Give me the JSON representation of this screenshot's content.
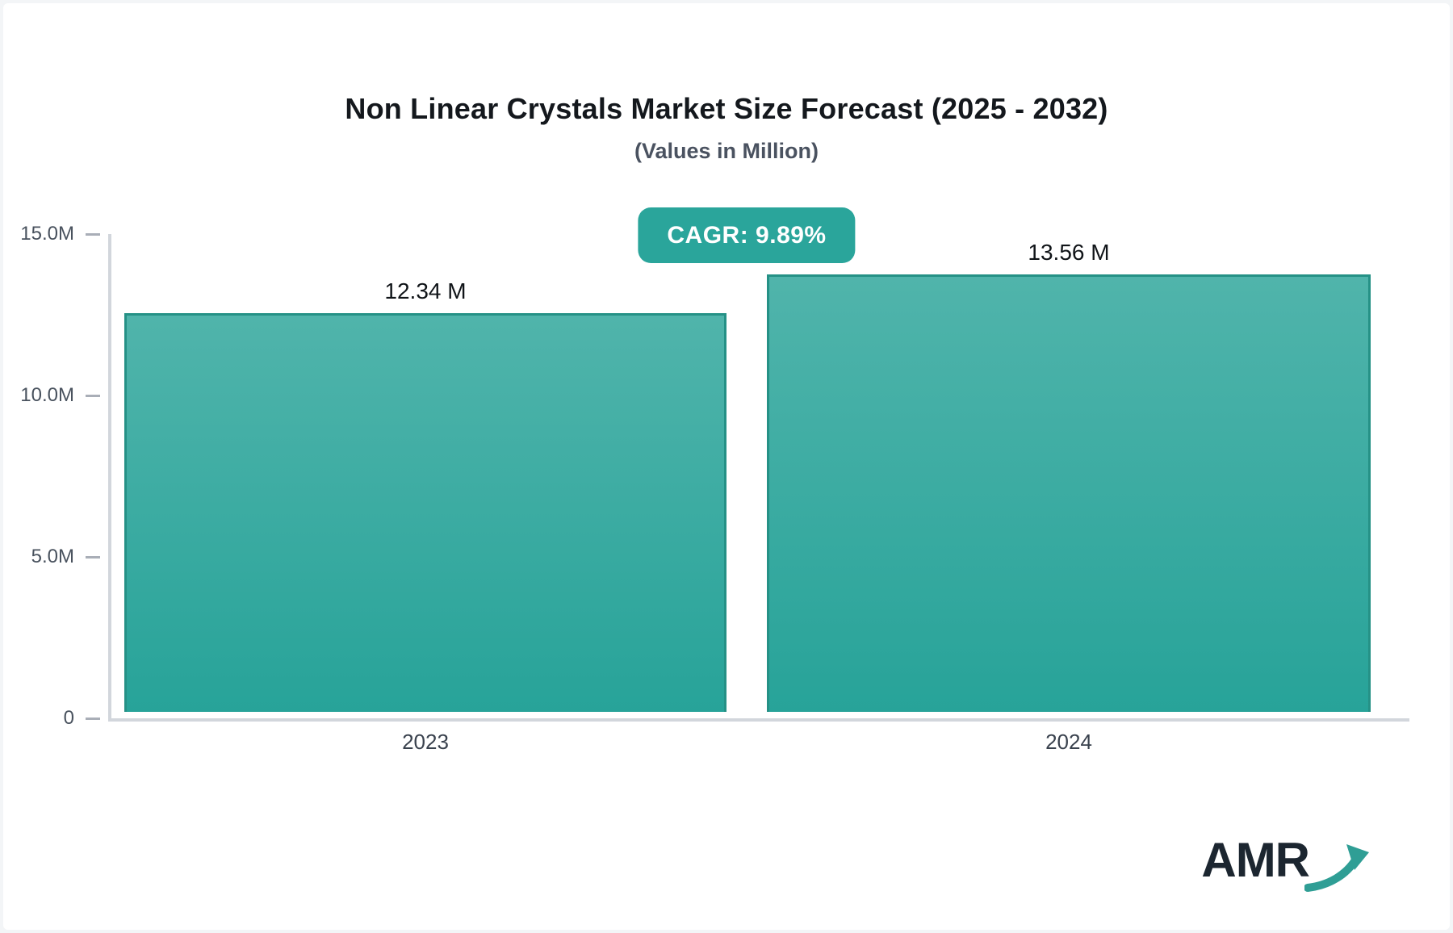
{
  "header": {
    "title": "Non Linear Crystals Market Size Forecast (2025 - 2032)",
    "subtitle": "(Values in Million)"
  },
  "badge": {
    "label": "CAGR: 9.89%",
    "cagr_percent": 9.89
  },
  "chart_data": {
    "type": "bar",
    "title": "Non Linear Crystals Market Size Forecast (2025 - 2032)",
    "subtitle": "(Values in Million)",
    "unit": "Million",
    "categories": [
      "2023",
      "2024"
    ],
    "values": [
      12.34,
      13.56
    ],
    "value_labels": [
      "12.34 M",
      "13.56 M"
    ],
    "ylim": [
      0,
      15
    ],
    "yticks": [
      {
        "value": 15,
        "label": "15.0M"
      },
      {
        "value": 10,
        "label": "10.0M"
      },
      {
        "value": 5,
        "label": "5.0M"
      },
      {
        "value": 0,
        "label": "0"
      }
    ],
    "grid": false,
    "legend": false
  },
  "logo": {
    "text": "AMR",
    "arrow_icon": "growth-arrow-icon"
  },
  "colors": {
    "accent_teal": "#2aa59b",
    "bar_gradient_top": "#50b4ab",
    "bar_gradient_bottom": "#27a399",
    "bar_border": "#259186",
    "axis_line": "#d2d6dc",
    "tick_label": "#49525e",
    "category_label": "#3a424e",
    "title_text": "#14181d",
    "subtitle_text": "#4a5260",
    "logo_text": "#1c2630",
    "logo_arrow": "#2f9e95",
    "badge_text": "#ffffff",
    "card_bg": "#ffffff",
    "page_bg": "#f3f5f7"
  }
}
